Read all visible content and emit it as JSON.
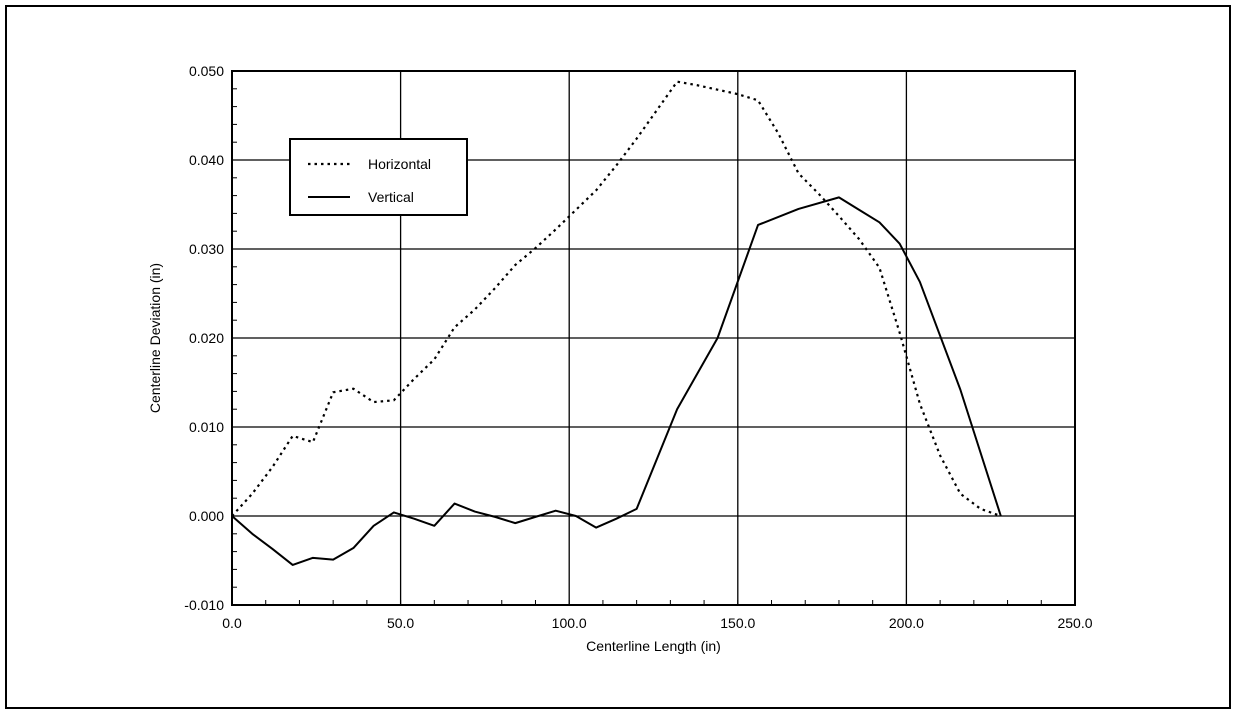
{
  "chart_data": {
    "type": "line",
    "xlabel": "Centerline Length (in)",
    "ylabel": "Centerline Deviation (in)",
    "xlim": [
      0,
      250
    ],
    "ylim": [
      -0.01,
      0.05
    ],
    "x_ticks": [
      "0.0",
      "50.0",
      "100.0",
      "150.0",
      "200.0",
      "250.0"
    ],
    "y_ticks": [
      "-0.010",
      "0.000",
      "0.010",
      "0.020",
      "0.030",
      "0.040",
      "0.050"
    ],
    "grid": true,
    "legend_position": "upper-left",
    "series": [
      {
        "name": "Horizontal",
        "style": "dotted",
        "x": [
          0,
          6,
          12,
          18,
          24,
          30,
          36,
          42,
          48,
          54,
          60,
          66,
          72,
          78,
          84,
          90,
          96,
          102,
          108,
          114,
          120,
          126,
          132,
          138,
          144,
          150,
          156,
          162,
          168,
          174,
          180,
          186,
          192,
          198,
          204,
          210,
          216,
          222,
          228
        ],
        "y": [
          0.0,
          0.0025,
          0.0055,
          0.009,
          0.0083,
          0.0139,
          0.0143,
          0.0128,
          0.013,
          0.0154,
          0.0176,
          0.0212,
          0.0232,
          0.0256,
          0.0282,
          0.0301,
          0.0322,
          0.0344,
          0.0366,
          0.0394,
          0.0424,
          0.0456,
          0.0488,
          0.0484,
          0.0479,
          0.0474,
          0.0467,
          0.043,
          0.0385,
          0.0362,
          0.0337,
          0.0311,
          0.0279,
          0.0206,
          0.0126,
          0.0068,
          0.0025,
          0.0008,
          0.0
        ]
      },
      {
        "name": "Vertical",
        "style": "solid",
        "x": [
          0,
          6,
          12,
          18,
          24,
          30,
          36,
          42,
          48,
          54,
          60,
          66,
          72,
          78,
          84,
          90,
          96,
          102,
          108,
          114,
          120,
          132,
          144,
          156,
          168,
          180,
          186,
          192,
          198,
          204,
          216,
          228
        ],
        "y": [
          0.0,
          -0.002,
          -0.0037,
          -0.0055,
          -0.0047,
          -0.0049,
          -0.0036,
          -0.0011,
          0.0004,
          -0.0003,
          -0.0011,
          0.0014,
          0.0005,
          -0.0001,
          -0.0008,
          -0.0001,
          0.0006,
          0.0,
          -0.0013,
          -0.0003,
          0.0008,
          0.012,
          0.02,
          0.0327,
          0.0345,
          0.0358,
          0.0344,
          0.033,
          0.0306,
          0.0263,
          0.0142,
          0.0
        ]
      }
    ]
  }
}
